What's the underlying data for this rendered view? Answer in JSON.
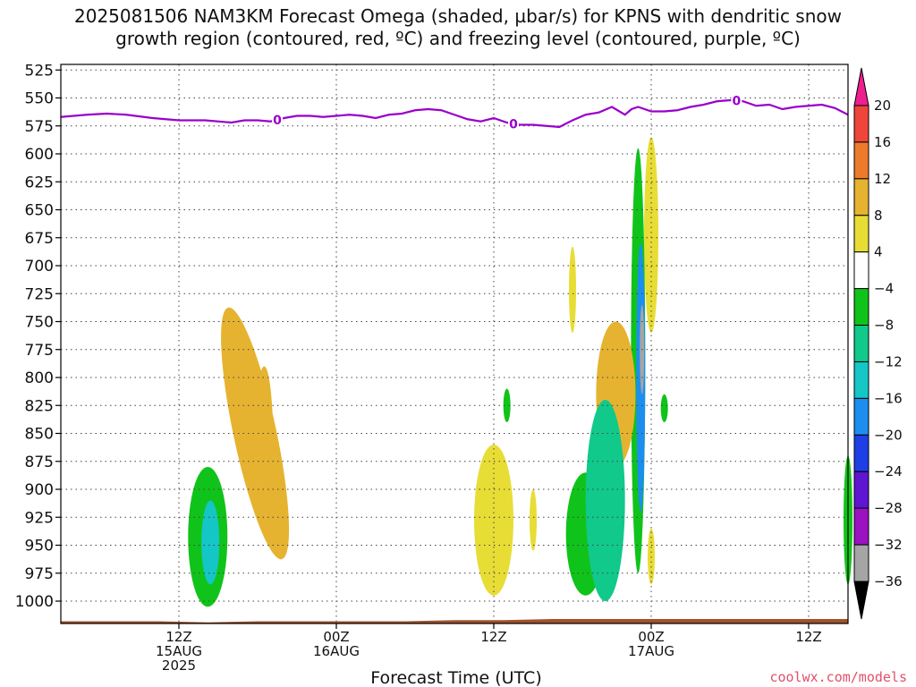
{
  "title_line1": "2025081506 NAM3KM Forecast Omega (shaded, µbar/s) for KPNS with dendritic snow",
  "title_line2": "growth region (contoured, red, ºC) and freezing level (contoured, purple, ºC)",
  "watermark": "coolwx.com/models",
  "colors": {
    "freezing_level": "#9900cc",
    "terrain": "#a0522d",
    "gridline": "#444444"
  },
  "chart_data": {
    "type": "heatmap",
    "xlabel": "Forecast Time (UTC)",
    "ylabel": "",
    "x_range_hours": [
      -3,
      57
    ],
    "y_range_hpa": [
      520,
      1020
    ],
    "y_scale": "linear-pressure",
    "grid": true,
    "y_ticks": [
      525,
      550,
      575,
      600,
      625,
      650,
      675,
      700,
      725,
      750,
      775,
      800,
      825,
      850,
      875,
      900,
      925,
      950,
      975,
      1000
    ],
    "x_ticks": [
      {
        "hour": 6,
        "labels": [
          "12Z",
          "15AUG",
          "2025"
        ]
      },
      {
        "hour": 18,
        "labels": [
          "00Z",
          "16AUG"
        ]
      },
      {
        "hour": 30,
        "labels": [
          "12Z"
        ]
      },
      {
        "hour": 42,
        "labels": [
          "00Z",
          "17AUG"
        ]
      },
      {
        "hour": 54,
        "labels": [
          "12Z"
        ]
      }
    ],
    "colorbar": {
      "labels": [
        "20",
        "16",
        "12",
        "8",
        "4",
        "−4",
        "−8",
        "−12",
        "−16",
        "−20",
        "−24",
        "−28",
        "−32",
        "−36"
      ],
      "bins": [
        {
          "min": 20,
          "max": null,
          "color": "#ee1f8e"
        },
        {
          "min": 16,
          "max": 20,
          "color": "#f0453a"
        },
        {
          "min": 12,
          "max": 16,
          "color": "#ee7b2c"
        },
        {
          "min": 8,
          "max": 12,
          "color": "#e6b330"
        },
        {
          "min": 4,
          "max": 8,
          "color": "#e8dd35"
        },
        {
          "min": -4,
          "max": 4,
          "color": "#ffffff"
        },
        {
          "min": -8,
          "max": -4,
          "color": "#10c31a"
        },
        {
          "min": -12,
          "max": -8,
          "color": "#10c98a"
        },
        {
          "min": -16,
          "max": -12,
          "color": "#14c6c6"
        },
        {
          "min": -20,
          "max": -16,
          "color": "#1c8ef0"
        },
        {
          "min": -24,
          "max": -20,
          "color": "#1f3fe6"
        },
        {
          "min": -28,
          "max": -24,
          "color": "#5e16d2"
        },
        {
          "min": -32,
          "max": -28,
          "color": "#9b12c2"
        },
        {
          "min": -36,
          "max": -32,
          "color": "#a5a5a5"
        },
        {
          "min": null,
          "max": -36,
          "color": "#000000"
        }
      ]
    },
    "freezing_level_0C": {
      "label": "0",
      "hours": [
        -3,
        -1,
        0.5,
        2,
        4,
        5,
        6,
        8,
        10,
        11,
        12,
        13,
        14,
        15,
        16,
        17,
        18,
        19,
        20,
        21,
        22,
        23,
        24,
        25,
        26,
        27,
        28,
        29,
        30,
        31,
        32,
        33,
        34,
        35,
        36,
        37,
        38,
        39,
        40,
        40.5,
        41,
        42,
        43,
        44,
        45,
        46,
        47,
        48,
        49,
        50,
        51,
        52,
        53,
        54,
        55,
        56,
        57
      ],
      "pressure": [
        567,
        565,
        564,
        565,
        568,
        569,
        570,
        570,
        572,
        570,
        570,
        571,
        568,
        566,
        566,
        567,
        566,
        565,
        566,
        568,
        565,
        564,
        561,
        560,
        561,
        565,
        569,
        571,
        568,
        572,
        574,
        574,
        575,
        576,
        570,
        565,
        563,
        558,
        565,
        560,
        558,
        562,
        562,
        561,
        558,
        556,
        553,
        552,
        553,
        557,
        556,
        560,
        558,
        557,
        556,
        559,
        565
      ],
      "labeled_hours": [
        13.5,
        31.5,
        48.5
      ]
    },
    "omega_features": [
      {
        "hour_center": 11.8,
        "p_top": 735,
        "p_bottom": 965,
        "value": 8,
        "shape": "tilted-lobe"
      },
      {
        "hour_center": 12.5,
        "p_top": 790,
        "p_bottom": 925,
        "value": 10,
        "shape": "core"
      },
      {
        "hour_center": 8.2,
        "p_top": 880,
        "p_bottom": 1005,
        "value": -6,
        "shape": "lobe"
      },
      {
        "hour_center": 8.4,
        "p_top": 910,
        "p_bottom": 985,
        "value": -14,
        "shape": "core"
      },
      {
        "hour_center": 30.0,
        "p_top": 860,
        "p_bottom": 995,
        "value": 6,
        "shape": "lobe"
      },
      {
        "hour_center": 31.0,
        "p_top": 810,
        "p_bottom": 840,
        "value": -6,
        "shape": "small"
      },
      {
        "hour_center": 33.0,
        "p_top": 900,
        "p_bottom": 955,
        "value": 6,
        "shape": "small"
      },
      {
        "hour_center": 36.0,
        "p_top": 683,
        "p_bottom": 760,
        "value": 6,
        "shape": "small"
      },
      {
        "hour_center": 37.0,
        "p_top": 885,
        "p_bottom": 995,
        "value": -6,
        "shape": "lobe"
      },
      {
        "hour_center": 39.3,
        "p_top": 750,
        "p_bottom": 880,
        "value": 10,
        "shape": "lobe"
      },
      {
        "hour_center": 38.5,
        "p_top": 820,
        "p_bottom": 1000,
        "value": -10,
        "shape": "lobe"
      },
      {
        "hour_center": 41.0,
        "p_top": 595,
        "p_bottom": 975,
        "value": -8,
        "shape": "tall"
      },
      {
        "hour_center": 41.2,
        "p_top": 680,
        "p_bottom": 920,
        "value": -20,
        "shape": "tall-core"
      },
      {
        "hour_center": 41.3,
        "p_top": 735,
        "p_bottom": 815,
        "value": -36,
        "shape": "core"
      },
      {
        "hour_center": 42.0,
        "p_top": 585,
        "p_bottom": 760,
        "value": 6,
        "shape": "tall"
      },
      {
        "hour_center": 42.0,
        "p_top": 935,
        "p_bottom": 985,
        "value": 6,
        "shape": "small"
      },
      {
        "hour_center": 43.0,
        "p_top": 815,
        "p_bottom": 840,
        "value": -6,
        "shape": "small"
      },
      {
        "hour_center": 57.0,
        "p_top": 870,
        "p_bottom": 985,
        "value": -6,
        "shape": "edge"
      }
    ],
    "terrain_surface_hpa": [
      1018,
      1018,
      1018,
      1019,
      1018,
      1018,
      1018,
      1018,
      1017,
      1017,
      1016,
      1016,
      1016,
      1016,
      1016,
      1016,
      1016
    ]
  }
}
